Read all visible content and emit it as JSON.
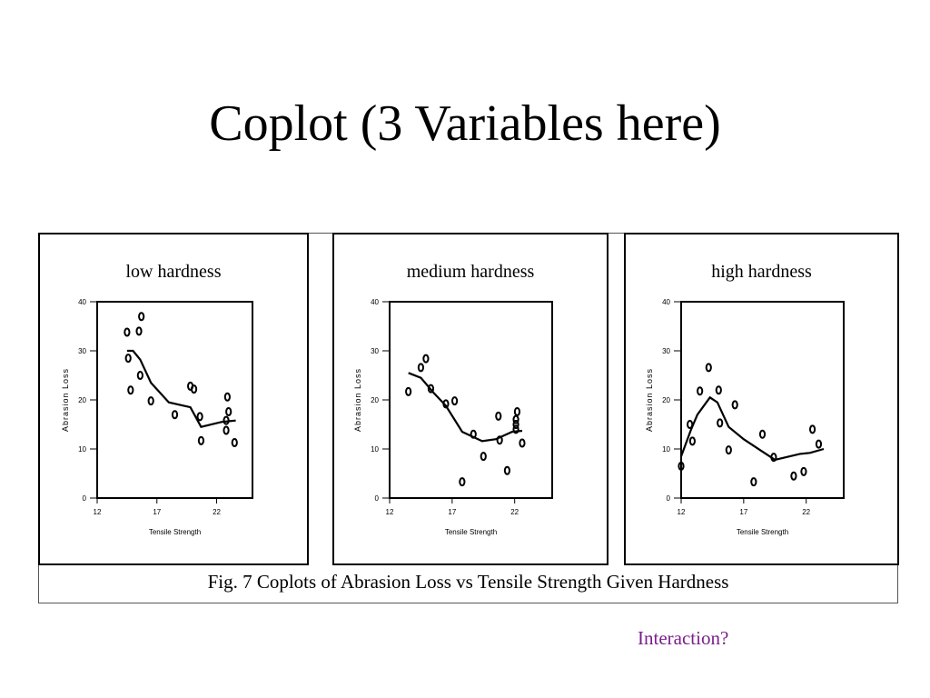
{
  "slide": {
    "title": "Coplot (3 Variables here)",
    "caption": "Fig. 7 Coplots of Abrasion Loss vs Tensile Strength Given Hardness",
    "note": "Interaction?"
  },
  "chart_data": [
    {
      "type": "scatter",
      "title": "low hardness",
      "xlabel": "Tensile Strength",
      "ylabel": "Abrasion Loss",
      "xlim": [
        12,
        25
      ],
      "ylim": [
        0,
        40
      ],
      "xticks": [
        12,
        17,
        22
      ],
      "yticks": [
        0,
        10,
        20,
        30,
        40
      ],
      "series": [
        {
          "points": [
            [
              14.5,
              33.8
            ],
            [
              14.6,
              28.5
            ],
            [
              14.8,
              22
            ],
            [
              15.5,
              34
            ],
            [
              15.7,
              37
            ],
            [
              15.6,
              25
            ],
            [
              16.5,
              19.8
            ],
            [
              18.5,
              17
            ],
            [
              19.8,
              22.8
            ],
            [
              20.1,
              22.2
            ],
            [
              20.6,
              16.6
            ],
            [
              20.7,
              11.7
            ],
            [
              22.9,
              20.6
            ],
            [
              23.0,
              17.6
            ],
            [
              22.8,
              15.8
            ],
            [
              22.8,
              13.8
            ],
            [
              23.5,
              11.3
            ]
          ]
        },
        {
          "line": [
            [
              14.5,
              30
            ],
            [
              15,
              30
            ],
            [
              15.6,
              28.2
            ],
            [
              16.5,
              23.5
            ],
            [
              18,
              19.5
            ],
            [
              19.8,
              18.5
            ],
            [
              20.7,
              14.5
            ],
            [
              22.4,
              15.5
            ],
            [
              23.6,
              15.8
            ]
          ]
        }
      ]
    },
    {
      "type": "scatter",
      "title": "medium hardness",
      "xlabel": "Tensile Strength",
      "ylabel": "Abrasion Loss",
      "xlim": [
        12,
        25
      ],
      "ylim": [
        0,
        40
      ],
      "xticks": [
        12,
        17,
        22
      ],
      "yticks": [
        0,
        10,
        20,
        30,
        40
      ],
      "series": [
        {
          "points": [
            [
              13.5,
              21.7
            ],
            [
              14.5,
              26.6
            ],
            [
              14.9,
              28.4
            ],
            [
              15.3,
              22.3
            ],
            [
              16.5,
              19.2
            ],
            [
              17.2,
              19.8
            ],
            [
              17.8,
              3.3
            ],
            [
              18.7,
              13
            ],
            [
              19.5,
              8.5
            ],
            [
              20.7,
              16.7
            ],
            [
              20.8,
              11.8
            ],
            [
              21.4,
              5.6
            ],
            [
              22.2,
              17.6
            ],
            [
              22.1,
              16
            ],
            [
              22.1,
              15
            ],
            [
              22.1,
              14
            ],
            [
              22.6,
              11.2
            ]
          ]
        },
        {
          "line": [
            [
              13.5,
              25.5
            ],
            [
              14.5,
              24.5
            ],
            [
              15.5,
              21.5
            ],
            [
              16.5,
              18.8
            ],
            [
              17.8,
              13.5
            ],
            [
              19.4,
              11.6
            ],
            [
              20.5,
              12
            ],
            [
              21.8,
              13.5
            ],
            [
              22.6,
              13.7
            ]
          ]
        }
      ]
    },
    {
      "type": "scatter",
      "title": "high hardness",
      "xlabel": "Tensile Strength",
      "ylabel": "Abrasion Loss",
      "xlim": [
        12,
        25
      ],
      "ylim": [
        0,
        40
      ],
      "xticks": [
        12,
        17,
        22
      ],
      "yticks": [
        0,
        10,
        20,
        30,
        40
      ],
      "series": [
        {
          "points": [
            [
              12,
              6.5
            ],
            [
              12.7,
              15
            ],
            [
              12.9,
              11.6
            ],
            [
              13.5,
              21.8
            ],
            [
              14.2,
              26.6
            ],
            [
              15,
              22
            ],
            [
              15.1,
              15.3
            ],
            [
              15.8,
              9.8
            ],
            [
              16.3,
              19
            ],
            [
              17.8,
              3.3
            ],
            [
              18.5,
              13
            ],
            [
              19.4,
              8.3
            ],
            [
              21,
              4.5
            ],
            [
              21.8,
              5.4
            ],
            [
              22.5,
              14
            ],
            [
              23,
              11
            ]
          ]
        },
        {
          "line": [
            [
              12,
              8.5
            ],
            [
              12.8,
              14
            ],
            [
              13.3,
              17
            ],
            [
              14.3,
              20.5
            ],
            [
              14.9,
              19.5
            ],
            [
              15.8,
              14.5
            ],
            [
              17,
              12
            ],
            [
              18.3,
              9.8
            ],
            [
              19.5,
              7.8
            ],
            [
              21.5,
              9
            ],
            [
              22.3,
              9.2
            ],
            [
              23.4,
              10
            ]
          ]
        }
      ]
    }
  ]
}
